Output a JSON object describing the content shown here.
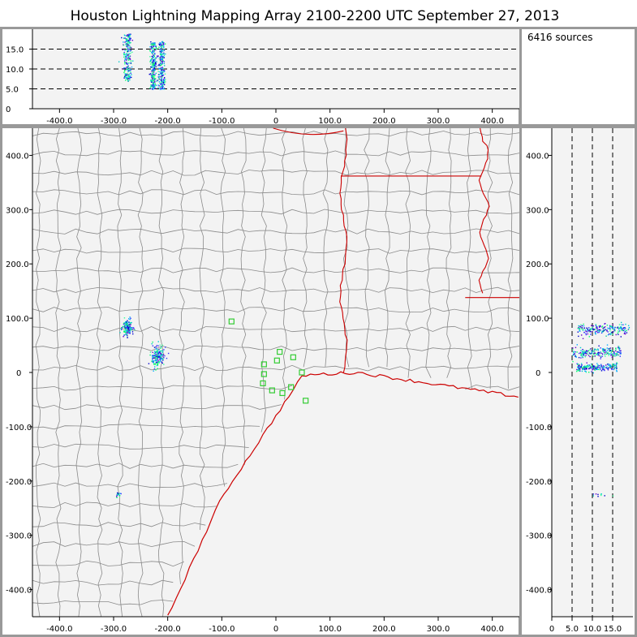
{
  "title": "Houston Lightning Mapping Array   2100-2200 UTC  September 27, 2013",
  "source_count_text": "6416 sources",
  "colors": {
    "background_panel": "#f3f3f3",
    "border_gray": "#999999",
    "county_lines": "#8a8a8a",
    "state_coast_lines": "#cc0000",
    "station_markers": "#33cc33",
    "dashed_lines": "#000000"
  },
  "chart_data": [
    {
      "panel": "altitude-vs-east-west",
      "type": "scatter",
      "x_ticks": [
        "-400.0",
        "-300.0",
        "-200.0",
        "-100.0",
        "0",
        "100.0",
        "200.0",
        "300.0",
        "400.0"
      ],
      "y_ticks": [
        "0",
        "5.0",
        "10.0",
        "15.0"
      ],
      "xlim": [
        -450,
        450
      ],
      "ylim": [
        0,
        20
      ],
      "dashed_reference_lines_y": [
        5,
        10,
        15
      ],
      "clusters": [
        {
          "x_center": -275,
          "x_spread": 8,
          "z_min": 7,
          "z_max": 19
        },
        {
          "x_center": -228,
          "x_spread": 6,
          "z_min": 5,
          "z_max": 17
        },
        {
          "x_center": -212,
          "x_spread": 6,
          "z_min": 5,
          "z_max": 17
        }
      ]
    },
    {
      "panel": "plan-view-north-south-vs-east-west",
      "type": "scatter",
      "x_ticks": [
        "-400.0",
        "-300.0",
        "-200.0",
        "-100.0",
        "0",
        "100.0",
        "200.0",
        "300.0",
        "400.0"
      ],
      "y_ticks": [
        "400.0",
        "300.0",
        "200.0",
        "100.0",
        "0",
        "-100.0",
        "-200.0",
        "-300.0",
        "-400.0"
      ],
      "xlim": [
        -450,
        450
      ],
      "ylim": [
        -450,
        450
      ],
      "clusters": [
        {
          "x_center": -275,
          "y_center": 82,
          "x_spread": 8,
          "y_spread": 12
        },
        {
          "x_center": -220,
          "y_center": 30,
          "x_spread": 10,
          "y_spread": 18
        },
        {
          "x_center": -292,
          "y_center": -225,
          "x_spread": 4,
          "y_spread": 4
        }
      ],
      "stations": [
        {
          "x": -82,
          "y": 94
        },
        {
          "x": -22,
          "y": 15
        },
        {
          "x": -22,
          "y": -3
        },
        {
          "x": -24,
          "y": -20
        },
        {
          "x": -7,
          "y": -33
        },
        {
          "x": 2,
          "y": 22
        },
        {
          "x": 7,
          "y": 38
        },
        {
          "x": 12,
          "y": -38
        },
        {
          "x": 28,
          "y": -27
        },
        {
          "x": 32,
          "y": 28
        },
        {
          "x": 48,
          "y": 0
        },
        {
          "x": 55,
          "y": -52
        }
      ]
    },
    {
      "panel": "north-south-vs-altitude",
      "type": "scatter",
      "x_ticks": [
        "0",
        "5.0",
        "10.0",
        "15.0"
      ],
      "y_ticks": [
        "400.0",
        "300.0",
        "200.0",
        "100.0",
        "0",
        "-100.0",
        "-200.0",
        "-300.0",
        "-400.0"
      ],
      "xlim": [
        0,
        20
      ],
      "ylim": [
        -450,
        450
      ],
      "dashed_reference_lines_x": [
        5,
        10,
        15
      ],
      "clusters": [
        {
          "y_center": 80,
          "y_spread": 10,
          "z_min": 6,
          "z_max": 19
        },
        {
          "y_center": 38,
          "y_spread": 10,
          "z_min": 5,
          "z_max": 17
        },
        {
          "y_center": 10,
          "y_spread": 7,
          "z_min": 6,
          "z_max": 16
        }
      ]
    }
  ]
}
